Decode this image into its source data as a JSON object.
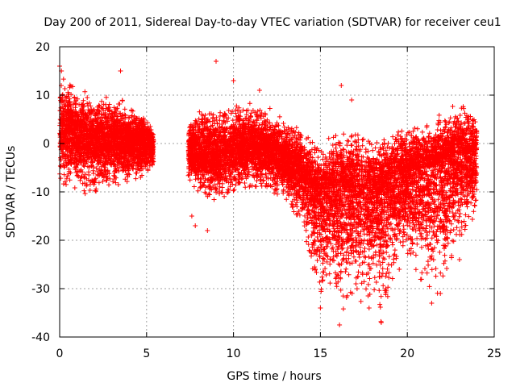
{
  "chart_data": {
    "type": "scatter",
    "title": "Day 200 of 2011, Sidereal Day-to-day VTEC variation (SDTVAR) for receiver ceu1",
    "xlabel": "GPS time / hours",
    "ylabel": "SDTVAR / TECUs",
    "xlim": [
      0,
      25
    ],
    "ylim": [
      -40,
      20
    ],
    "xticks": [
      0,
      5,
      10,
      15,
      20,
      25
    ],
    "yticks": [
      -40,
      -30,
      -20,
      -10,
      0,
      10,
      20
    ],
    "grid": true,
    "marker": "+",
    "color": "#ff0000",
    "series": [
      {
        "name": "SDTVAR",
        "density_per_hour": 550,
        "envelope": [
          {
            "x": 0.0,
            "center": 2,
            "lo": -10,
            "hi": 16
          },
          {
            "x": 1.0,
            "center": 2,
            "lo": -10,
            "hi": 13
          },
          {
            "x": 2.0,
            "center": 1,
            "lo": -11,
            "hi": 10
          },
          {
            "x": 3.0,
            "center": 1,
            "lo": -9,
            "hi": 11
          },
          {
            "x": 4.0,
            "center": 0,
            "lo": -8,
            "hi": 9
          },
          {
            "x": 5.0,
            "center": 0,
            "lo": -7,
            "hi": 6
          },
          {
            "x": 5.4,
            "center": 0,
            "lo": -5,
            "hi": 3
          },
          {
            "x": 7.4,
            "center": -1,
            "lo": -8,
            "hi": 6
          },
          {
            "x": 8.0,
            "center": -2,
            "lo": -10,
            "hi": 9
          },
          {
            "x": 9.0,
            "center": -2,
            "lo": -12,
            "hi": 8
          },
          {
            "x": 10.0,
            "center": -1,
            "lo": -11,
            "hi": 9
          },
          {
            "x": 11.0,
            "center": 0,
            "lo": -9,
            "hi": 10
          },
          {
            "x": 12.0,
            "center": -1,
            "lo": -10,
            "hi": 8
          },
          {
            "x": 13.0,
            "center": -3,
            "lo": -12,
            "hi": 6
          },
          {
            "x": 14.0,
            "center": -6,
            "lo": -17,
            "hi": 4
          },
          {
            "x": 15.0,
            "center": -11,
            "lo": -34,
            "hi": 0
          },
          {
            "x": 15.5,
            "center": -10,
            "lo": -28,
            "hi": 2
          },
          {
            "x": 16.0,
            "center": -9,
            "lo": -36,
            "hi": 6
          },
          {
            "x": 17.0,
            "center": -9,
            "lo": -33,
            "hi": 4
          },
          {
            "x": 18.0,
            "center": -10,
            "lo": -33,
            "hi": 3
          },
          {
            "x": 18.5,
            "center": -10,
            "lo": -37,
            "hi": 2
          },
          {
            "x": 19.0,
            "center": -7,
            "lo": -30,
            "hi": 4
          },
          {
            "x": 20.0,
            "center": -6,
            "lo": -23,
            "hi": 5
          },
          {
            "x": 21.0,
            "center": -5,
            "lo": -31,
            "hi": 5
          },
          {
            "x": 22.0,
            "center": -4,
            "lo": -32,
            "hi": 7
          },
          {
            "x": 23.0,
            "center": -2,
            "lo": -20,
            "hi": 9
          },
          {
            "x": 24.0,
            "center": -2,
            "lo": -16,
            "hi": 8
          }
        ],
        "gap": [
          5.4,
          7.4
        ],
        "outliers": [
          {
            "x": 0.0,
            "y": 16
          },
          {
            "x": 0.1,
            "y": 15
          },
          {
            "x": 3.5,
            "y": 15
          },
          {
            "x": 9.0,
            "y": 17
          },
          {
            "x": 10.0,
            "y": 13
          },
          {
            "x": 7.6,
            "y": -15
          },
          {
            "x": 7.8,
            "y": -17
          },
          {
            "x": 8.5,
            "y": -18
          },
          {
            "x": 16.2,
            "y": 12
          },
          {
            "x": 15.0,
            "y": -34
          },
          {
            "x": 16.1,
            "y": -37.5
          },
          {
            "x": 17.8,
            "y": -34
          },
          {
            "x": 18.5,
            "y": -37
          },
          {
            "x": 21.4,
            "y": -33
          },
          {
            "x": 21.9,
            "y": -31
          },
          {
            "x": 23.0,
            "y": -24
          },
          {
            "x": 11.5,
            "y": 11
          },
          {
            "x": 16.8,
            "y": 9
          }
        ]
      }
    ]
  }
}
